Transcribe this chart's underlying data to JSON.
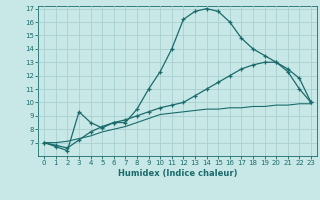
{
  "xlabel": "Humidex (Indice chaleur)",
  "bg_color": "#c8e8e8",
  "line_color": "#1a6b6b",
  "xlim": [
    -0.5,
    23.5
  ],
  "ylim": [
    6,
    17.2
  ],
  "xticks": [
    0,
    1,
    2,
    3,
    4,
    5,
    6,
    7,
    8,
    9,
    10,
    11,
    12,
    13,
    14,
    15,
    16,
    17,
    18,
    19,
    20,
    21,
    22,
    23
  ],
  "yticks": [
    7,
    8,
    9,
    10,
    11,
    12,
    13,
    14,
    15,
    16,
    17
  ],
  "curve1_x": [
    0,
    1,
    2,
    3,
    4,
    5,
    6,
    7,
    8,
    9,
    10,
    11,
    12,
    13,
    14,
    15,
    16,
    17,
    18,
    19,
    20,
    21,
    22,
    23
  ],
  "curve1_y": [
    7.0,
    6.7,
    6.4,
    9.3,
    8.5,
    8.1,
    8.5,
    8.5,
    9.5,
    11.0,
    12.3,
    14.0,
    16.2,
    16.8,
    17.0,
    16.8,
    16.0,
    14.8,
    14.0,
    13.5,
    13.0,
    12.3,
    11.0,
    10.0
  ],
  "curve2_x": [
    0,
    1,
    2,
    3,
    4,
    5,
    6,
    7,
    8,
    9,
    10,
    11,
    12,
    13,
    14,
    15,
    16,
    17,
    18,
    19,
    20,
    21,
    22,
    23
  ],
  "curve2_y": [
    7.0,
    6.8,
    6.6,
    7.2,
    7.8,
    8.2,
    8.5,
    8.7,
    9.0,
    9.3,
    9.6,
    9.8,
    10.0,
    10.5,
    11.0,
    11.5,
    12.0,
    12.5,
    12.8,
    13.0,
    13.0,
    12.5,
    11.8,
    10.0
  ],
  "curve3_x": [
    0,
    1,
    2,
    3,
    4,
    5,
    6,
    7,
    8,
    9,
    10,
    11,
    12,
    13,
    14,
    15,
    16,
    17,
    18,
    19,
    20,
    21,
    22,
    23
  ],
  "curve3_y": [
    7.0,
    7.0,
    7.1,
    7.3,
    7.5,
    7.8,
    8.0,
    8.2,
    8.5,
    8.8,
    9.1,
    9.2,
    9.3,
    9.4,
    9.5,
    9.5,
    9.6,
    9.6,
    9.7,
    9.7,
    9.8,
    9.8,
    9.9,
    9.9
  ],
  "grid_color": "#aacfcf",
  "xlabel_fontsize": 6.0,
  "tick_fontsize": 5.0
}
